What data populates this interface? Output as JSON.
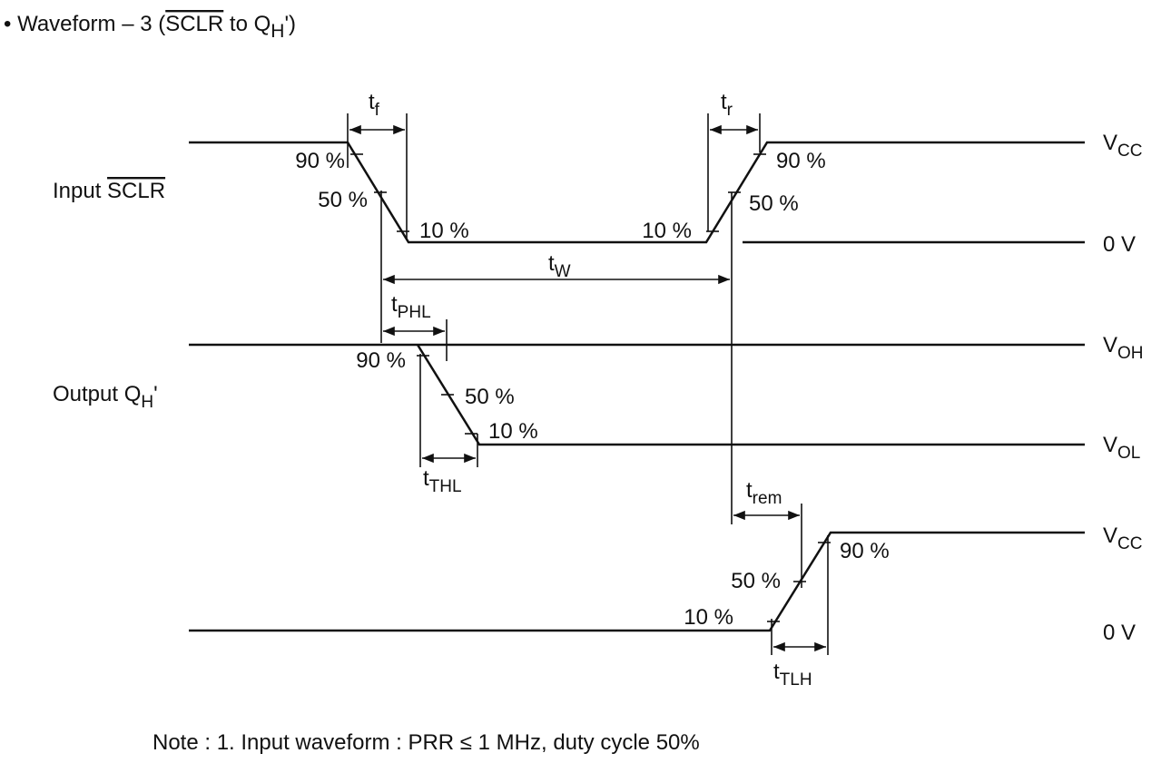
{
  "title": {
    "text": "• Waveform – 3 (",
    "over": "SCLR",
    "text2": " to Q",
    "sub": "H",
    "text3": "')"
  },
  "signals": [
    {
      "text": "Input ",
      "over": "SCLR"
    },
    {
      "text": "Output Q",
      "sub": "H",
      "text2": "'"
    }
  ],
  "levels": [
    {
      "text": "V",
      "sub": "CC"
    },
    {
      "text": "0 V"
    },
    {
      "text": "V",
      "sub": "OH"
    },
    {
      "text": "V",
      "sub": "OL"
    },
    {
      "text": "V",
      "sub": "CC"
    },
    {
      "text": "0 V"
    }
  ],
  "percent_labels": [
    "90 %",
    "50 %",
    "10 %",
    "10 %",
    "90 %",
    "50 %",
    "90 %",
    "50 %",
    "10 %",
    "90 %",
    "50 %",
    "10 %"
  ],
  "timing_labels": [
    {
      "text": "t",
      "sub": "f"
    },
    {
      "text": "t",
      "sub": "r"
    },
    {
      "text": "t",
      "sub": "W"
    },
    {
      "text": "t",
      "sub": "PHL"
    },
    {
      "text": "t",
      "sub": "THL"
    },
    {
      "text": "t",
      "sub": "rem"
    },
    {
      "text": "t",
      "sub": "TLH"
    }
  ],
  "note": "Note :  1. Input waveform : PRR ≤ 1 MHz, duty cycle 50%"
}
